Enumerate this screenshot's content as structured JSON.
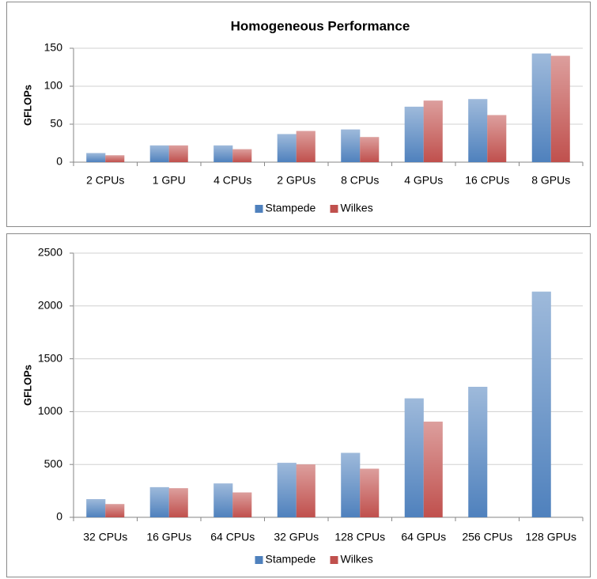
{
  "chart_data": [
    {
      "type": "bar",
      "title": "Homogeneous Performance",
      "y_label": "GFLOPs",
      "categories": [
        "2 CPUs",
        "1 GPU",
        "4 CPUs",
        "2 GPUs",
        "8 CPUs",
        "4 GPUs",
        "16 CPUs",
        "8 GPUs"
      ],
      "series": [
        {
          "name": "Stampede",
          "color": "#4f81bd",
          "values": [
            12,
            22,
            22,
            37,
            43,
            73,
            83,
            143
          ]
        },
        {
          "name": "Wilkes",
          "color": "#c0504d",
          "values": [
            9,
            22,
            17,
            41,
            33,
            81,
            62,
            140
          ]
        }
      ],
      "ylim": [
        0,
        150
      ],
      "yticks": [
        0,
        50,
        100,
        150
      ],
      "grid": true,
      "legend": "bottom"
    },
    {
      "type": "bar",
      "y_label": "GFLOPs",
      "categories": [
        "32 CPUs",
        "16 GPUs",
        "64 CPUs",
        "32 GPUs",
        "128 CPUs",
        "64 GPUs",
        "256 CPUs",
        "128 GPUs"
      ],
      "series": [
        {
          "name": "Stampede",
          "color": "#4f81bd",
          "values": [
            172,
            285,
            320,
            515,
            610,
            1125,
            1235,
            2135
          ]
        },
        {
          "name": "Wilkes",
          "color": "#c0504d",
          "values": [
            125,
            275,
            235,
            500,
            460,
            905,
            null,
            null
          ]
        }
      ],
      "ylim": [
        0,
        2500
      ],
      "yticks": [
        0,
        500,
        1000,
        1500,
        2000,
        2500
      ],
      "grid": true,
      "legend": "bottom"
    }
  ]
}
